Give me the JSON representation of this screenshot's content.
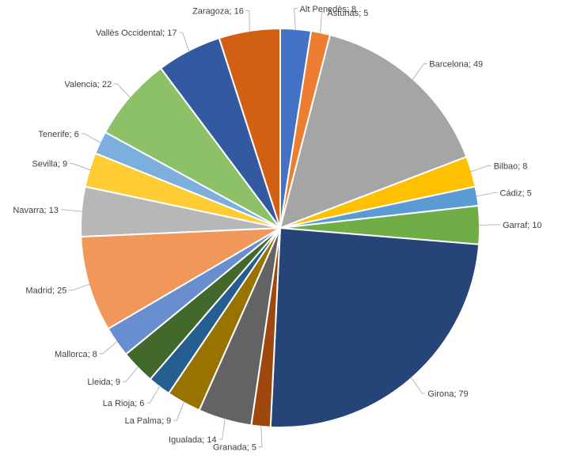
{
  "chart_data": {
    "type": "pie",
    "title": "",
    "label_format": "{category}; {value}",
    "legend": "none",
    "slices": [
      {
        "category": "Alt Penedès",
        "value": 8,
        "color": "#4472C4"
      },
      {
        "category": "Asturias",
        "value": 5,
        "color": "#ED7D31"
      },
      {
        "category": "Barcelona",
        "value": 49,
        "color": "#A5A5A5"
      },
      {
        "category": "Bilbao",
        "value": 8,
        "color": "#FFC000"
      },
      {
        "category": "Cádiz",
        "value": 5,
        "color": "#5B9BD5"
      },
      {
        "category": "Garraf",
        "value": 10,
        "color": "#70AD47"
      },
      {
        "category": "Girona",
        "value": 79,
        "color": "#264478"
      },
      {
        "category": "Granada",
        "value": 5,
        "color": "#9E480E"
      },
      {
        "category": "Igualada",
        "value": 14,
        "color": "#636363"
      },
      {
        "category": "La Palma",
        "value": 9,
        "color": "#997300"
      },
      {
        "category": "La Rioja",
        "value": 6,
        "color": "#255E91"
      },
      {
        "category": "Lleida",
        "value": 9,
        "color": "#43682B"
      },
      {
        "category": "Mallorca",
        "value": 8,
        "color": "#698ED0"
      },
      {
        "category": "Madrid",
        "value": 25,
        "color": "#F1975A"
      },
      {
        "category": "Navarra",
        "value": 13,
        "color": "#B7B7B7"
      },
      {
        "category": "Sevilla",
        "value": 9,
        "color": "#FFCD33"
      },
      {
        "category": "Tenerife",
        "value": 6,
        "color": "#7CAFDD"
      },
      {
        "category": "Valencia",
        "value": 22,
        "color": "#8CC168"
      },
      {
        "category": "Vallès Occidental",
        "value": 17,
        "color": "#335AA1"
      },
      {
        "category": "Zaragoza",
        "value": 16,
        "color": "#D26012"
      }
    ]
  }
}
